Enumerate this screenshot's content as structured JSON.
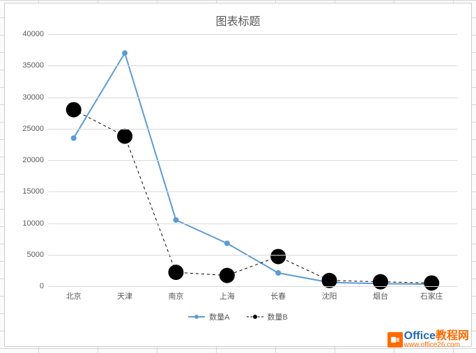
{
  "chart": {
    "type": "line",
    "title": "图表标题",
    "title_fontsize": 16,
    "title_color": "#595959",
    "background_color": "#ffffff",
    "border_color": "#cccccc",
    "grid_color": "#d9d9d9",
    "axis_label_color": "#595959",
    "axis_label_fontsize": 11,
    "categories": [
      "北京",
      "天津",
      "南京",
      "上海",
      "长春",
      "沈阳",
      "烟台",
      "石家庄"
    ],
    "y_axis": {
      "min": 0,
      "max": 40000,
      "tick_step": 5000,
      "ticks": [
        0,
        5000,
        10000,
        15000,
        20000,
        25000,
        30000,
        35000,
        40000
      ]
    },
    "series": [
      {
        "name": "数量A",
        "color": "#5b9bd5",
        "line_width": 2,
        "line_style": "solid",
        "marker_style": "circle",
        "marker_size": 4,
        "values": [
          23500,
          37000,
          10500,
          6800,
          2100,
          600,
          400,
          300
        ]
      },
      {
        "name": "数量B",
        "color": "#000000",
        "line_width": 1,
        "line_style": "dashed",
        "marker_style": "circle",
        "marker_size": 11,
        "values": [
          28000,
          23800,
          2200,
          1700,
          4700,
          900,
          700,
          500
        ]
      }
    ],
    "legend": {
      "position": "bottom"
    }
  },
  "watermark": {
    "brand_prefix": "Office",
    "brand_suffix": "教程网",
    "url": "www.office26.com",
    "prefix_color": "#1f6bb8",
    "suffix_color": "#ff6a00",
    "url_color": "#ff6a00",
    "badge_bg": "#ff6a00"
  }
}
